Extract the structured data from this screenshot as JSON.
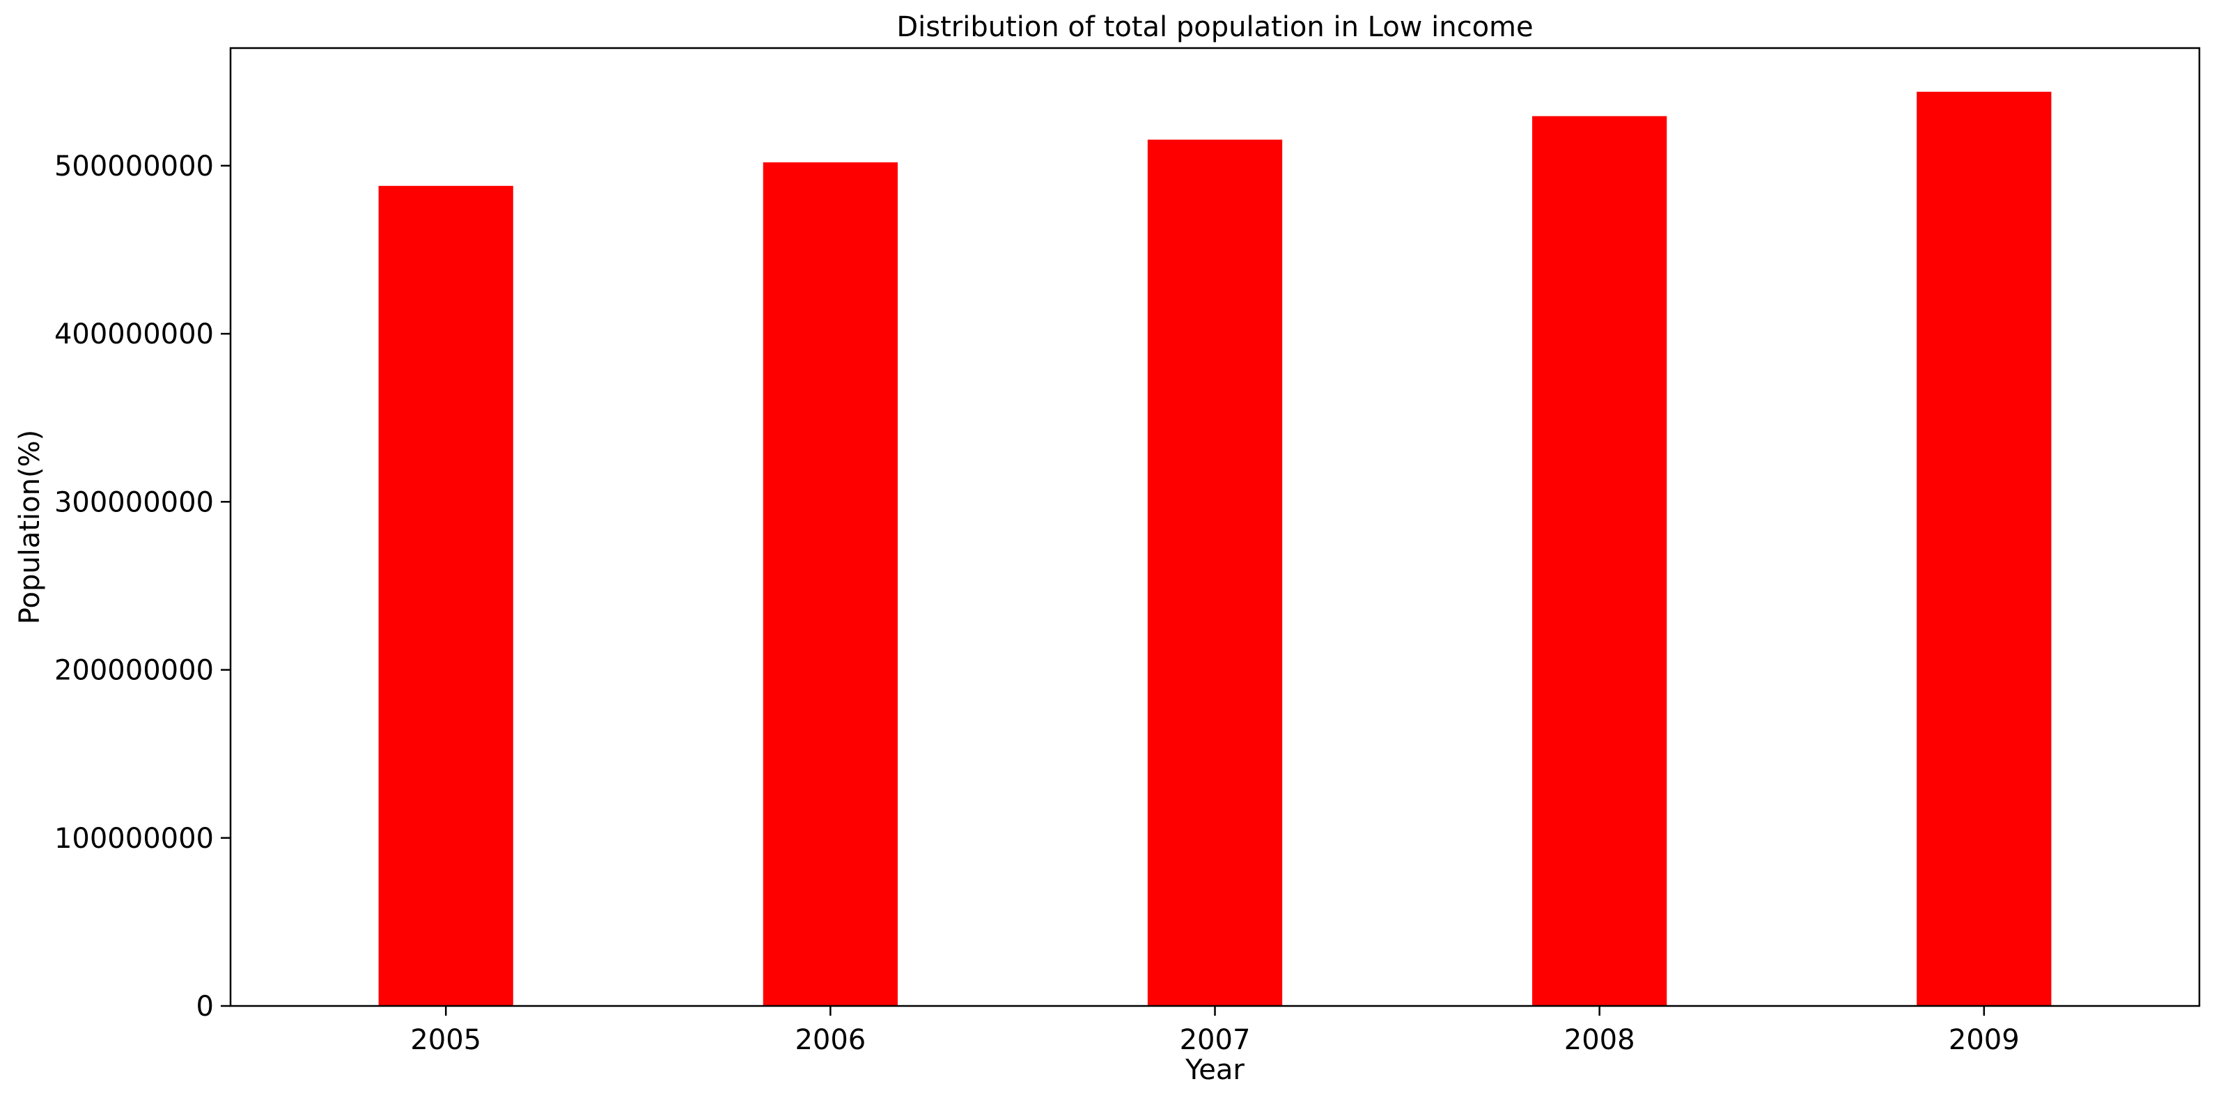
{
  "chart_data": {
    "type": "bar",
    "title": "Distribution of total population in Low income",
    "xlabel": "Year",
    "ylabel": "Population(%)",
    "categories": [
      "2005",
      "2006",
      "2007",
      "2008",
      "2009"
    ],
    "values": [
      488000000,
      502000000,
      515500000,
      529500000,
      544000000
    ],
    "ylim": [
      0,
      570000000
    ],
    "yticks": [
      0,
      100000000,
      200000000,
      300000000,
      400000000,
      500000000
    ],
    "ytick_labels": [
      "0",
      "100000000",
      "200000000",
      "300000000",
      "400000000",
      "500000000"
    ],
    "bar_color": "#ff0000",
    "grid": false,
    "legend": "none"
  }
}
